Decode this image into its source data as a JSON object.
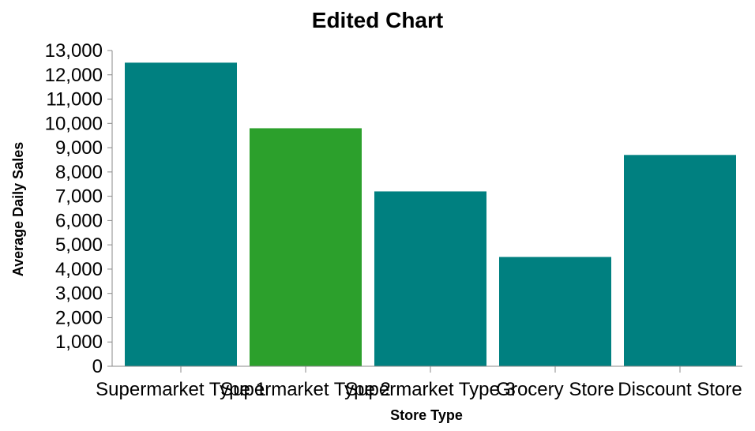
{
  "chart_data": {
    "type": "bar",
    "title": "Edited Chart",
    "xlabel": "Store Type",
    "ylabel": "Average Daily Sales",
    "categories": [
      "Supermarket Type 1",
      "Supermarket Type 2",
      "Supermarket Type 3",
      "Grocery Store",
      "Discount Store"
    ],
    "values": [
      12500,
      9800,
      7200,
      4500,
      8700
    ],
    "bar_colors": [
      "#008080",
      "#2ca02c",
      "#008080",
      "#008080",
      "#008080"
    ],
    "ylim": [
      0,
      13000
    ],
    "yticks": [
      0,
      1000,
      2000,
      3000,
      4000,
      5000,
      6000,
      7000,
      8000,
      9000,
      10000,
      11000,
      12000,
      13000
    ],
    "grid": false,
    "legend": "none"
  }
}
